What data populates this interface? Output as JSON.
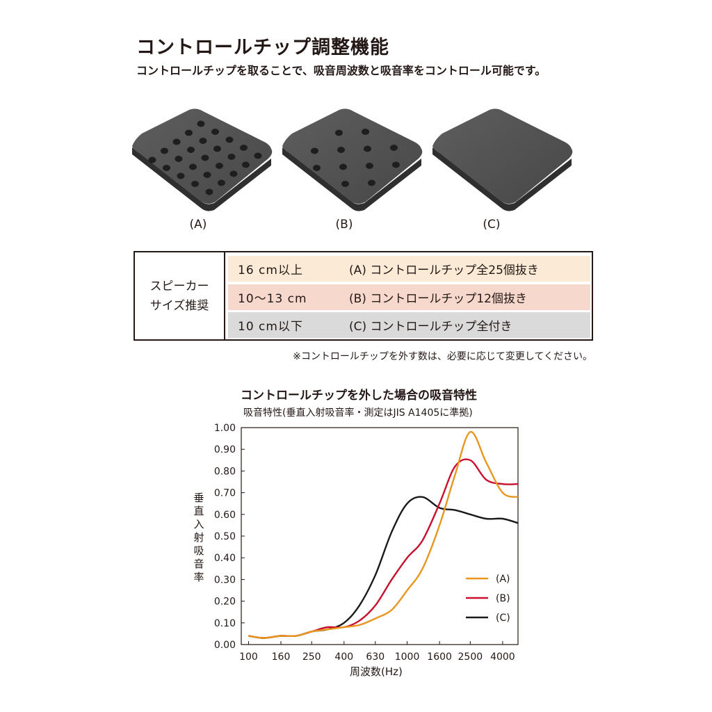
{
  "header": {
    "title": "コントロールチップ調整機能",
    "subtitle": "コントロールチップを取ることで、吸音周波数と吸音率をコントロール可能です。"
  },
  "tiles": [
    {
      "label": "(A)"
    },
    {
      "label": "(B)"
    },
    {
      "label": "(C)"
    }
  ],
  "recommend": {
    "head_line1": "スピーカー",
    "head_line2": "サイズ推奨",
    "rows": [
      {
        "size": "16 cm以上",
        "chip": "(A) コントロールチップ全25個抜き",
        "color": "#fbebd6"
      },
      {
        "size": "10〜13 cm",
        "chip": "(B) コントロールチップ12個抜き",
        "color": "#f7d8cd"
      },
      {
        "size": "10 cm以下",
        "chip": "(C) コントロールチップ全付き",
        "color": "#dadada"
      }
    ],
    "note": "※コントロールチップを外す数は、必要に応じて変更してください。"
  },
  "chart_data": {
    "type": "line",
    "title": "コントロールチップを外した場合の吸音特性",
    "subtitle": "吸音特性(垂直入射吸音率・測定はJIS A1405に準拠)",
    "xlabel": "周波数(Hz)",
    "ylabel": "垂直入射吸音率",
    "xscale": "log",
    "xlim": [
      90,
      5000
    ],
    "ylim": [
      0,
      1
    ],
    "x_ticks": [
      100,
      160,
      250,
      400,
      630,
      1000,
      1600,
      2500,
      4000
    ],
    "y_ticks": [
      "0.00",
      "0.10",
      "0.20",
      "0.30",
      "0.40",
      "0.50",
      "0.60",
      "0.70",
      "0.80",
      "0.90",
      "1.00"
    ],
    "legend_position": "bottom-right",
    "grid": false,
    "series": [
      {
        "name": "(A)",
        "color": "#e8961e",
        "points": [
          [
            100,
            0.04
          ],
          [
            125,
            0.03
          ],
          [
            160,
            0.04
          ],
          [
            200,
            0.04
          ],
          [
            250,
            0.06
          ],
          [
            315,
            0.07
          ],
          [
            400,
            0.08
          ],
          [
            500,
            0.09
          ],
          [
            630,
            0.12
          ],
          [
            800,
            0.16
          ],
          [
            1000,
            0.25
          ],
          [
            1250,
            0.35
          ],
          [
            1600,
            0.55
          ],
          [
            2000,
            0.78
          ],
          [
            2500,
            0.98
          ],
          [
            3150,
            0.84
          ],
          [
            4000,
            0.7
          ],
          [
            5000,
            0.68
          ]
        ]
      },
      {
        "name": "(B)",
        "color": "#c8102e",
        "points": [
          [
            100,
            0.04
          ],
          [
            125,
            0.03
          ],
          [
            160,
            0.04
          ],
          [
            200,
            0.04
          ],
          [
            250,
            0.06
          ],
          [
            315,
            0.08
          ],
          [
            400,
            0.08
          ],
          [
            500,
            0.11
          ],
          [
            630,
            0.18
          ],
          [
            800,
            0.3
          ],
          [
            1000,
            0.4
          ],
          [
            1250,
            0.48
          ],
          [
            1600,
            0.65
          ],
          [
            2000,
            0.82
          ],
          [
            2500,
            0.85
          ],
          [
            3150,
            0.76
          ],
          [
            4000,
            0.74
          ],
          [
            5000,
            0.74
          ]
        ]
      },
      {
        "name": "(C)",
        "color": "#1a1a1a",
        "points": [
          [
            100,
            0.04
          ],
          [
            125,
            0.03
          ],
          [
            160,
            0.04
          ],
          [
            200,
            0.04
          ],
          [
            250,
            0.06
          ],
          [
            315,
            0.07
          ],
          [
            400,
            0.1
          ],
          [
            500,
            0.18
          ],
          [
            630,
            0.32
          ],
          [
            800,
            0.52
          ],
          [
            1000,
            0.65
          ],
          [
            1250,
            0.68
          ],
          [
            1600,
            0.63
          ],
          [
            2000,
            0.62
          ],
          [
            2500,
            0.6
          ],
          [
            3150,
            0.58
          ],
          [
            4000,
            0.58
          ],
          [
            5000,
            0.56
          ]
        ]
      }
    ]
  }
}
